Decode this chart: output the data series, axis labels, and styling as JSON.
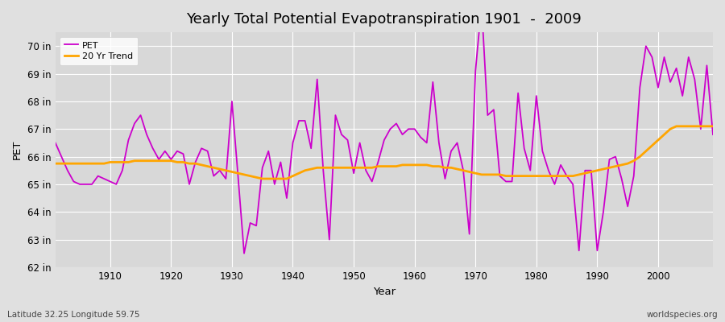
{
  "title": "Yearly Total Potential Evapotranspiration 1901  -  2009",
  "xlabel": "Year",
  "ylabel": "PET",
  "subtitle_left": "Latitude 32.25 Longitude 59.75",
  "subtitle_right": "worldspecies.org",
  "pet_color": "#CC00CC",
  "trend_color": "#FFA500",
  "bg_color": "#E0E0E0",
  "plot_bg_color": "#D8D8D8",
  "ylim": [
    62,
    70.5
  ],
  "xlim": [
    1901,
    2009
  ],
  "yticks": [
    62,
    63,
    64,
    65,
    66,
    67,
    68,
    69,
    70
  ],
  "ytick_labels": [
    "62 in",
    "63 in",
    "64 in",
    "65 in",
    "66 in",
    "67 in",
    "68 in",
    "69 in",
    "70 in"
  ],
  "years": [
    1901,
    1902,
    1903,
    1904,
    1905,
    1906,
    1907,
    1908,
    1909,
    1910,
    1911,
    1912,
    1913,
    1914,
    1915,
    1916,
    1917,
    1918,
    1919,
    1920,
    1921,
    1922,
    1923,
    1924,
    1925,
    1926,
    1927,
    1928,
    1929,
    1930,
    1931,
    1932,
    1933,
    1934,
    1935,
    1936,
    1937,
    1938,
    1939,
    1940,
    1941,
    1942,
    1943,
    1944,
    1945,
    1946,
    1947,
    1948,
    1949,
    1950,
    1951,
    1952,
    1953,
    1954,
    1955,
    1956,
    1957,
    1958,
    1959,
    1960,
    1961,
    1962,
    1963,
    1964,
    1965,
    1966,
    1967,
    1968,
    1969,
    1970,
    1971,
    1972,
    1973,
    1974,
    1975,
    1976,
    1977,
    1978,
    1979,
    1980,
    1981,
    1982,
    1983,
    1984,
    1985,
    1986,
    1987,
    1988,
    1989,
    1990,
    1991,
    1992,
    1993,
    1994,
    1995,
    1996,
    1997,
    1998,
    1999,
    2000,
    2001,
    2002,
    2003,
    2004,
    2005,
    2006,
    2007,
    2008,
    2009
  ],
  "pet_values": [
    66.5,
    66.0,
    65.5,
    65.1,
    65.0,
    65.0,
    65.0,
    65.3,
    65.2,
    65.1,
    65.0,
    65.5,
    66.6,
    67.2,
    67.5,
    66.8,
    66.3,
    65.9,
    66.2,
    65.9,
    66.2,
    66.1,
    65.0,
    65.8,
    66.3,
    66.2,
    65.3,
    65.5,
    65.2,
    68.0,
    65.3,
    62.5,
    63.6,
    63.5,
    65.6,
    66.2,
    65.0,
    65.8,
    64.5,
    66.5,
    67.3,
    67.3,
    66.3,
    68.8,
    65.5,
    63.0,
    67.5,
    66.8,
    66.6,
    65.4,
    66.5,
    65.5,
    65.1,
    65.8,
    66.6,
    67.0,
    67.2,
    66.8,
    67.0,
    67.0,
    66.7,
    66.5,
    68.7,
    66.5,
    65.2,
    66.2,
    66.5,
    65.5,
    63.2,
    69.1,
    71.5,
    67.5,
    67.7,
    65.3,
    65.1,
    65.1,
    68.3,
    66.3,
    65.5,
    68.2,
    66.2,
    65.5,
    65.0,
    65.7,
    65.3,
    65.0,
    62.6,
    65.5,
    65.5,
    62.6,
    64.0,
    65.9,
    66.0,
    65.2,
    64.2,
    65.3,
    68.5,
    70.0,
    69.6,
    68.5,
    69.6,
    68.7,
    69.2,
    68.2,
    69.6,
    68.8,
    67.0,
    69.3,
    66.8
  ],
  "trend_values": [
    65.75,
    65.75,
    65.75,
    65.75,
    65.75,
    65.75,
    65.75,
    65.75,
    65.75,
    65.8,
    65.8,
    65.8,
    65.8,
    65.85,
    65.85,
    65.85,
    65.85,
    65.85,
    65.85,
    65.85,
    65.8,
    65.8,
    65.75,
    65.75,
    65.7,
    65.65,
    65.6,
    65.55,
    65.5,
    65.45,
    65.4,
    65.35,
    65.3,
    65.25,
    65.2,
    65.2,
    65.2,
    65.2,
    65.2,
    65.3,
    65.4,
    65.5,
    65.55,
    65.6,
    65.6,
    65.6,
    65.6,
    65.6,
    65.6,
    65.6,
    65.6,
    65.6,
    65.6,
    65.65,
    65.65,
    65.65,
    65.65,
    65.7,
    65.7,
    65.7,
    65.7,
    65.7,
    65.65,
    65.65,
    65.6,
    65.6,
    65.55,
    65.5,
    65.45,
    65.4,
    65.35,
    65.35,
    65.35,
    65.35,
    65.3,
    65.3,
    65.3,
    65.3,
    65.3,
    65.3,
    65.3,
    65.3,
    65.3,
    65.3,
    65.3,
    65.3,
    65.35,
    65.4,
    65.45,
    65.5,
    65.55,
    65.6,
    65.65,
    65.7,
    65.75,
    65.85,
    66.0,
    66.2,
    66.4,
    66.6,
    66.8,
    67.0,
    67.1,
    67.1,
    67.1,
    67.1,
    67.1,
    67.1,
    67.1
  ]
}
